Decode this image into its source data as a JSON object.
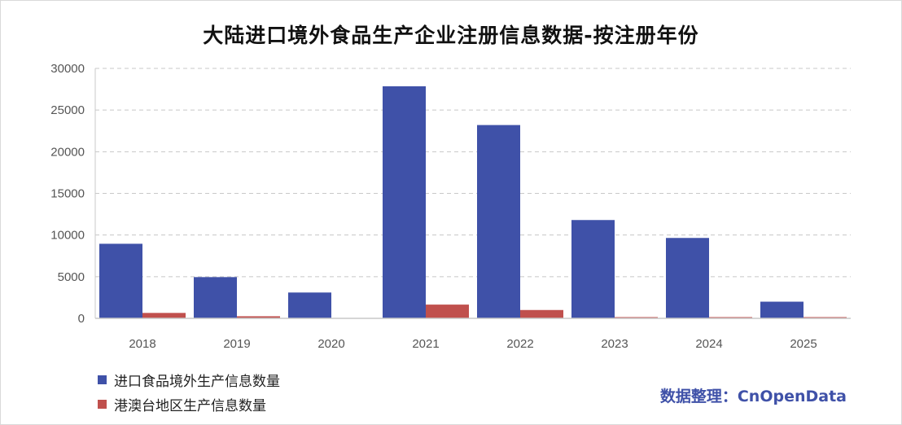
{
  "chart_data": {
    "type": "bar",
    "title": "大陆进口境外食品生产企业注册信息数据-按注册年份",
    "categories": [
      "2018",
      "2019",
      "2020",
      "2021",
      "2022",
      "2023",
      "2024",
      "2025"
    ],
    "series": [
      {
        "name": "进口食品境外生产信息数量",
        "color": "#3f51a8",
        "values": [
          8950,
          4950,
          3100,
          27850,
          23200,
          11800,
          9650,
          2000
        ]
      },
      {
        "name": "港澳台地区生产信息数量",
        "color": "#c0504d",
        "values": [
          650,
          250,
          0,
          1650,
          1000,
          150,
          150,
          150
        ]
      }
    ],
    "y_ticks": [
      "0",
      "5000",
      "10000",
      "15000",
      "20000",
      "25000",
      "30000"
    ],
    "ylim": [
      0,
      30000
    ],
    "grid": true,
    "legend_position": "bottom-left"
  },
  "source_label": "数据整理：CnOpenData"
}
